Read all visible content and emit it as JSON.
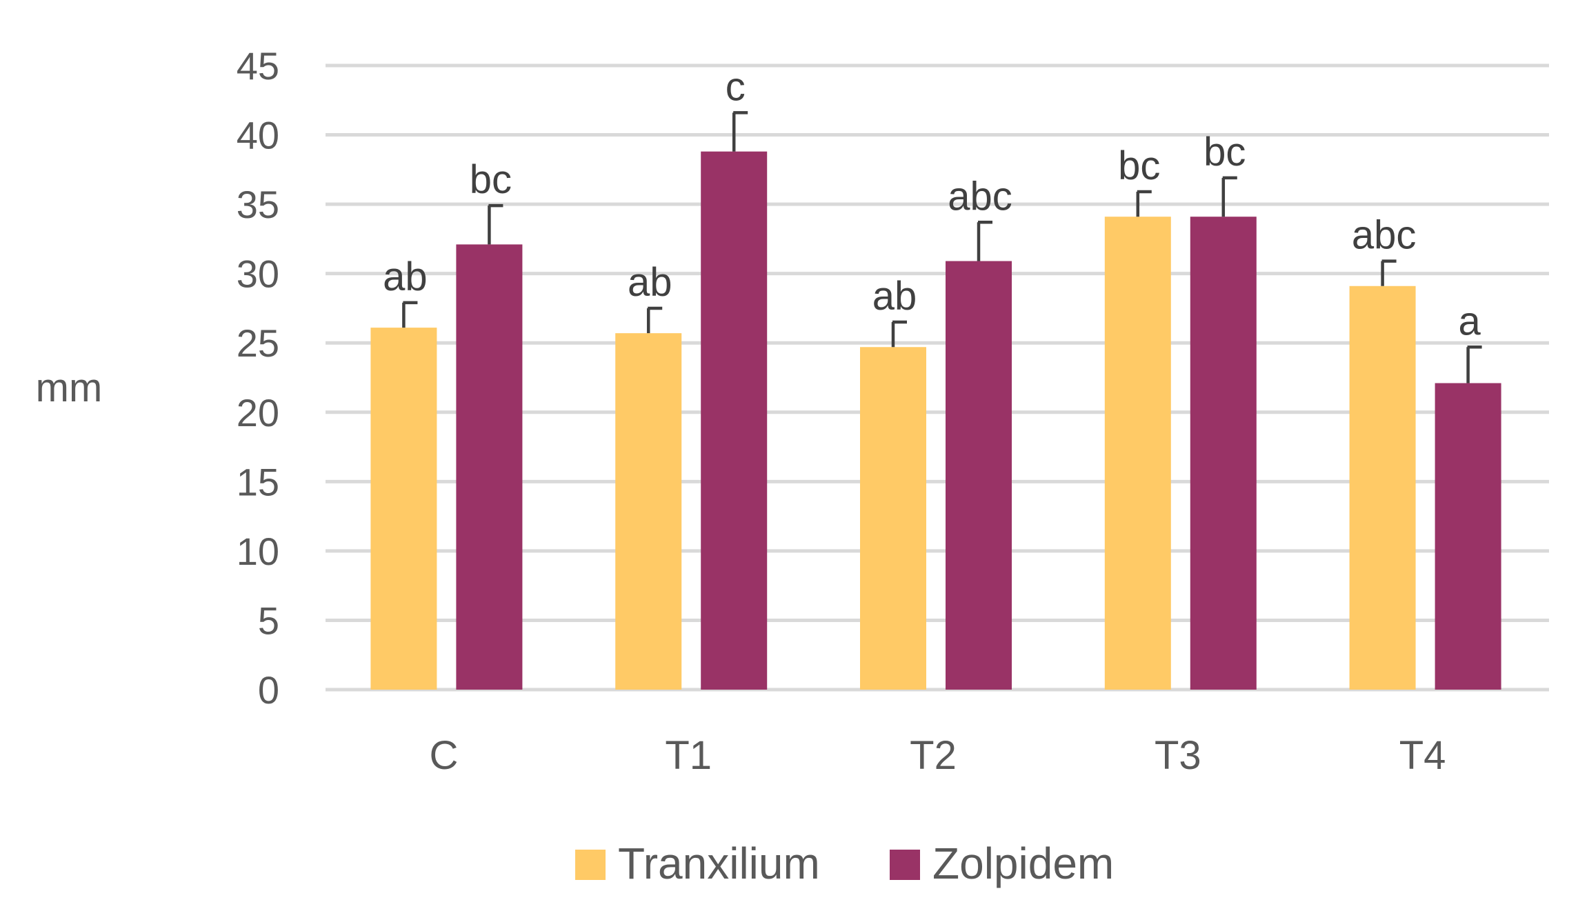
{
  "chart_data": {
    "type": "bar",
    "title": "",
    "xlabel": "",
    "ylabel": "mm",
    "ylim": [
      0,
      45
    ],
    "yticks": [
      0,
      5,
      10,
      15,
      20,
      25,
      30,
      35,
      40,
      45
    ],
    "grid": true,
    "legend_position": "bottom",
    "categories": [
      "C",
      "T1",
      "T2",
      "T3",
      "T4"
    ],
    "series": [
      {
        "name": "Tranxilium",
        "color": "#FFCA66",
        "values": [
          26.1,
          25.7,
          24.7,
          34.1,
          29.1
        ],
        "errors": [
          1.8,
          1.8,
          1.8,
          1.8,
          1.8
        ],
        "significance": [
          "ab",
          "ab",
          "ab",
          "bc",
          "abc"
        ]
      },
      {
        "name": "Zolpidem",
        "color": "#993366",
        "values": [
          32.1,
          38.8,
          30.9,
          34.1,
          22.1
        ],
        "errors": [
          2.8,
          2.8,
          2.8,
          2.8,
          2.6
        ],
        "significance": [
          "bc",
          "c",
          "abc",
          "bc",
          "a"
        ]
      }
    ]
  }
}
